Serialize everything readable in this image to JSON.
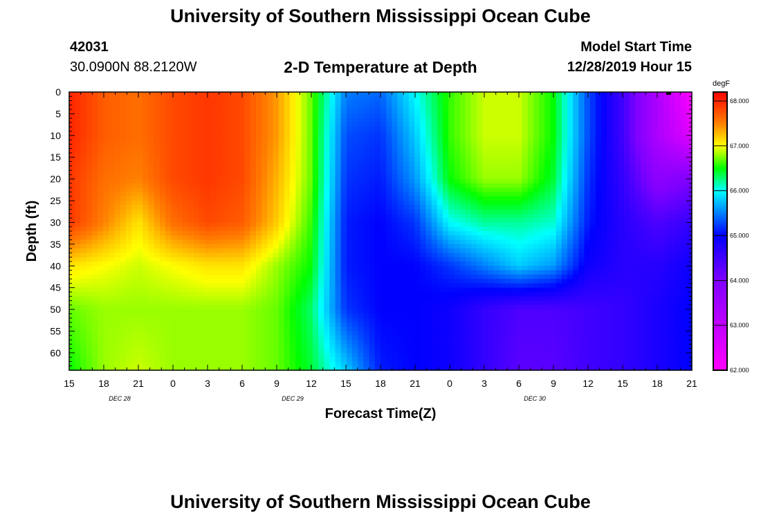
{
  "header": {
    "title_top": "University of Southern Mississippi Ocean Cube",
    "title_bottom": "University of Southern Mississippi Ocean Cube",
    "station_id": "42031",
    "location": "30.0900N 88.2120W",
    "model_start_label": "Model Start Time",
    "model_start_value": "12/28/2019 Hour 15"
  },
  "chart_data": {
    "type": "heatmap",
    "title": "2-D Temperature at Depth",
    "xlabel": "Forecast Time(Z)",
    "ylabel": "Depth (ft)",
    "x_tick_labels": [
      "15",
      "18",
      "21",
      "0",
      "3",
      "6",
      "9",
      "12",
      "15",
      "18",
      "21",
      "0",
      "3",
      "6",
      "9",
      "12",
      "15",
      "18",
      "21"
    ],
    "x_date_labels": [
      {
        "text": "DEC 28",
        "tick_index": 2
      },
      {
        "text": "DEC 29",
        "tick_index": 7
      },
      {
        "text": "DEC 30",
        "tick_index": 14
      }
    ],
    "x_range_hours": [
      0,
      54
    ],
    "y_tick_labels": [
      "0",
      "5",
      "10",
      "15",
      "20",
      "25",
      "30",
      "35",
      "40",
      "45",
      "50",
      "55",
      "60"
    ],
    "ylim": [
      0,
      64
    ],
    "colorbar": {
      "unit": "degF",
      "min": 62.0,
      "max": 68.2,
      "tick_labels": [
        "68.000",
        "67.000",
        "66.000",
        "65.000",
        "64.000",
        "63.000",
        "62.000"
      ],
      "tick_values": [
        68,
        67,
        66,
        65,
        64,
        63,
        62
      ],
      "color_stops": [
        {
          "value": 62.0,
          "color": "#ff00ff"
        },
        {
          "value": 63.0,
          "color": "#c000ff"
        },
        {
          "value": 64.0,
          "color": "#8000ff"
        },
        {
          "value": 65.0,
          "color": "#0000ff"
        },
        {
          "value": 66.0,
          "color": "#00ffff"
        },
        {
          "value": 66.5,
          "color": "#00ff00"
        },
        {
          "value": 67.0,
          "color": "#ffff00"
        },
        {
          "value": 67.5,
          "color": "#ff8000"
        },
        {
          "value": 68.2,
          "color": "#ff0000"
        }
      ]
    },
    "field": {
      "x_hours": [
        0,
        3,
        6,
        9,
        12,
        15,
        18,
        21,
        24,
        27,
        30,
        33,
        36,
        39,
        42,
        45,
        48,
        51,
        54
      ],
      "depths_ft": [
        0,
        10,
        20,
        30,
        40,
        50,
        64
      ],
      "values_degF": [
        [
          68.0,
          67.7,
          67.6,
          67.8,
          67.9,
          67.8,
          67.4,
          66.7,
          65.5,
          65.4,
          66.0,
          66.6,
          66.9,
          66.9,
          66.5,
          65.3,
          64.5,
          63.3,
          62.0
        ],
        [
          68.0,
          67.7,
          67.6,
          67.8,
          67.9,
          67.8,
          67.4,
          66.7,
          65.3,
          65.2,
          65.8,
          66.6,
          66.9,
          66.9,
          66.5,
          65.3,
          64.5,
          63.3,
          62.5
        ],
        [
          67.9,
          67.6,
          67.5,
          67.8,
          67.9,
          67.8,
          67.3,
          66.7,
          65.2,
          65.1,
          65.6,
          66.5,
          66.8,
          66.8,
          66.4,
          65.2,
          64.6,
          63.8,
          64.0
        ],
        [
          67.9,
          67.5,
          67.1,
          67.6,
          67.8,
          67.7,
          67.2,
          66.6,
          65.1,
          65.0,
          65.2,
          66.0,
          66.2,
          66.2,
          66.1,
          65.1,
          64.7,
          64.4,
          64.6
        ],
        [
          67.1,
          67.0,
          66.9,
          67.0,
          67.1,
          67.1,
          66.8,
          66.5,
          65.1,
          65.0,
          65.0,
          65.2,
          65.5,
          65.8,
          65.6,
          64.9,
          64.7,
          64.7,
          64.9
        ],
        [
          66.7,
          66.8,
          66.8,
          66.8,
          66.8,
          66.8,
          66.7,
          66.3,
          65.2,
          65.0,
          65.0,
          64.9,
          64.6,
          64.4,
          64.4,
          64.5,
          64.6,
          64.8,
          65.0
        ],
        [
          66.5,
          66.8,
          66.9,
          66.8,
          66.8,
          66.8,
          66.7,
          66.4,
          65.8,
          65.1,
          65.0,
          64.9,
          64.6,
          64.3,
          64.3,
          64.5,
          64.6,
          64.8,
          65.0
        ]
      ]
    }
  }
}
